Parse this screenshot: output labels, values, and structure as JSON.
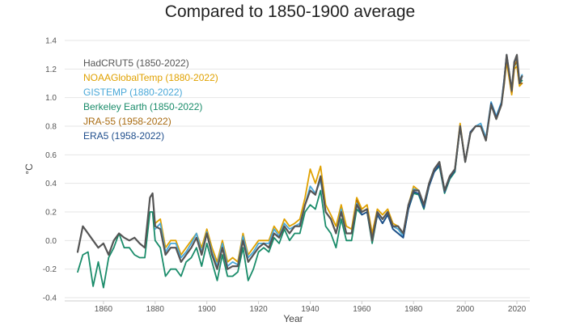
{
  "chart_data": {
    "type": "line",
    "title": "Compared to 1850-1900 average",
    "xlabel": "Year",
    "ylabel": "°C",
    "xlim": [
      1845,
      2025
    ],
    "ylim": [
      -0.4,
      1.4
    ],
    "xticks": [
      1860,
      1880,
      1900,
      1920,
      1940,
      1960,
      1980,
      2000,
      2020
    ],
    "yticks": [
      -0.4,
      -0.2,
      0.0,
      0.2,
      0.4,
      0.6,
      0.8,
      1.0,
      1.2,
      1.4
    ],
    "ytick_labels": [
      "-0.4",
      "-0.2",
      "0.0",
      "0.2",
      "0.4",
      "0.6",
      "0.8",
      "1.0",
      "1.2",
      "1.4"
    ],
    "grid": "horizontal",
    "legend_position": "top-left",
    "series": [
      {
        "name": "HadCRUT5 (1850-2022)",
        "color": "#555555",
        "x": [
          1850,
          1852,
          1854,
          1856,
          1858,
          1860,
          1862,
          1864,
          1866,
          1868,
          1870,
          1872,
          1874,
          1876,
          1878,
          1879,
          1880,
          1882,
          1884,
          1886,
          1888,
          1890,
          1892,
          1894,
          1896,
          1898,
          1900,
          1902,
          1904,
          1906,
          1908,
          1910,
          1912,
          1914,
          1916,
          1918,
          1920,
          1922,
          1924,
          1926,
          1928,
          1930,
          1932,
          1934,
          1936,
          1938,
          1940,
          1942,
          1944,
          1946,
          1948,
          1950,
          1952,
          1954,
          1956,
          1958,
          1960,
          1962,
          1964,
          1966,
          1968,
          1970,
          1972,
          1974,
          1976,
          1978,
          1980,
          1982,
          1984,
          1986,
          1988,
          1990,
          1992,
          1994,
          1996,
          1998,
          2000,
          2002,
          2004,
          2006,
          2008,
          2010,
          2012,
          2014,
          2015,
          2016,
          2018,
          2019,
          2020,
          2021,
          2022
        ],
        "values": [
          -0.08,
          0.1,
          0.05,
          0.0,
          -0.05,
          -0.02,
          -0.1,
          0.0,
          0.05,
          0.02,
          0.0,
          0.02,
          -0.02,
          -0.05,
          0.3,
          0.33,
          0.1,
          0.08,
          -0.1,
          -0.05,
          -0.05,
          -0.15,
          -0.1,
          -0.05,
          0.02,
          -0.1,
          0.05,
          -0.1,
          -0.2,
          -0.05,
          -0.2,
          -0.18,
          -0.18,
          0.0,
          -0.15,
          -0.1,
          -0.05,
          -0.02,
          -0.05,
          0.05,
          0.02,
          0.1,
          0.05,
          0.1,
          0.1,
          0.25,
          0.35,
          0.32,
          0.45,
          0.2,
          0.15,
          0.05,
          0.2,
          0.05,
          0.05,
          0.25,
          0.2,
          0.22,
          0.0,
          0.2,
          0.15,
          0.2,
          0.1,
          0.1,
          0.05,
          0.25,
          0.35,
          0.35,
          0.25,
          0.4,
          0.5,
          0.55,
          0.35,
          0.45,
          0.5,
          0.8,
          0.55,
          0.75,
          0.8,
          0.8,
          0.7,
          0.95,
          0.85,
          0.95,
          1.1,
          1.3,
          1.05,
          1.25,
          1.3,
          1.1,
          1.15
        ]
      },
      {
        "name": "NOAAGlobalTemp (1880-2022)",
        "color": "#e0a100",
        "x": [
          1880,
          1882,
          1884,
          1886,
          1888,
          1890,
          1892,
          1894,
          1896,
          1898,
          1900,
          1902,
          1904,
          1906,
          1908,
          1910,
          1912,
          1914,
          1916,
          1918,
          1920,
          1922,
          1924,
          1926,
          1928,
          1930,
          1932,
          1934,
          1936,
          1938,
          1940,
          1942,
          1944,
          1946,
          1948,
          1950,
          1952,
          1954,
          1956,
          1958,
          1960,
          1962,
          1964,
          1966,
          1968,
          1970,
          1972,
          1974,
          1976,
          1978,
          1980,
          1982,
          1984,
          1986,
          1988,
          1990,
          1992,
          1994,
          1996,
          1998,
          2000,
          2002,
          2004,
          2006,
          2008,
          2010,
          2012,
          2014,
          2015,
          2016,
          2018,
          2019,
          2020,
          2021,
          2022
        ],
        "values": [
          0.12,
          0.15,
          -0.05,
          0.0,
          0.0,
          -0.1,
          -0.05,
          0.0,
          0.05,
          -0.05,
          0.08,
          -0.05,
          -0.15,
          0.0,
          -0.15,
          -0.12,
          -0.15,
          0.05,
          -0.1,
          -0.05,
          0.0,
          0.0,
          0.0,
          0.1,
          0.05,
          0.15,
          0.1,
          0.12,
          0.15,
          0.3,
          0.5,
          0.4,
          0.52,
          0.25,
          0.18,
          0.1,
          0.25,
          0.1,
          0.08,
          0.3,
          0.22,
          0.25,
          0.05,
          0.22,
          0.18,
          0.22,
          0.12,
          0.1,
          0.05,
          0.25,
          0.38,
          0.35,
          0.25,
          0.4,
          0.5,
          0.55,
          0.35,
          0.45,
          0.5,
          0.82,
          0.55,
          0.75,
          0.8,
          0.8,
          0.7,
          0.95,
          0.85,
          0.95,
          1.08,
          1.25,
          1.02,
          1.2,
          1.22,
          1.08,
          1.1
        ]
      },
      {
        "name": "GISTEMP (1880-2022)",
        "color": "#4aa8d8",
        "x": [
          1880,
          1882,
          1884,
          1886,
          1888,
          1890,
          1892,
          1894,
          1896,
          1898,
          1900,
          1902,
          1904,
          1906,
          1908,
          1910,
          1912,
          1914,
          1916,
          1918,
          1920,
          1922,
          1924,
          1926,
          1928,
          1930,
          1932,
          1934,
          1936,
          1938,
          1940,
          1942,
          1944,
          1946,
          1948,
          1950,
          1952,
          1954,
          1956,
          1958,
          1960,
          1962,
          1964,
          1966,
          1968,
          1970,
          1972,
          1974,
          1976,
          1978,
          1980,
          1982,
          1984,
          1986,
          1988,
          1990,
          1992,
          1994,
          1996,
          1998,
          2000,
          2002,
          2004,
          2006,
          2008,
          2010,
          2012,
          2014,
          2015,
          2016,
          2018,
          2019,
          2020,
          2021,
          2022
        ],
        "values": [
          0.08,
          0.12,
          -0.08,
          -0.02,
          -0.02,
          -0.12,
          -0.08,
          -0.02,
          0.05,
          -0.08,
          0.06,
          -0.08,
          -0.18,
          -0.02,
          -0.18,
          -0.15,
          -0.17,
          0.03,
          -0.12,
          -0.08,
          -0.02,
          -0.02,
          -0.02,
          0.08,
          0.03,
          0.12,
          0.08,
          0.1,
          0.12,
          0.25,
          0.38,
          0.33,
          0.42,
          0.2,
          0.15,
          0.05,
          0.22,
          0.05,
          0.05,
          0.26,
          0.2,
          0.22,
          0.0,
          0.2,
          0.15,
          0.2,
          0.1,
          0.08,
          0.03,
          0.25,
          0.36,
          0.35,
          0.25,
          0.4,
          0.5,
          0.55,
          0.35,
          0.45,
          0.5,
          0.8,
          0.55,
          0.76,
          0.8,
          0.82,
          0.72,
          0.97,
          0.87,
          0.97,
          1.12,
          1.3,
          1.05,
          1.25,
          1.28,
          1.12,
          1.16
        ]
      },
      {
        "name": "Berkeley Earth (1850-2022)",
        "color": "#1a8c6a",
        "x": [
          1850,
          1852,
          1854,
          1856,
          1858,
          1860,
          1862,
          1864,
          1866,
          1868,
          1870,
          1872,
          1874,
          1876,
          1878,
          1879,
          1880,
          1882,
          1884,
          1886,
          1888,
          1890,
          1892,
          1894,
          1896,
          1898,
          1900,
          1902,
          1904,
          1906,
          1908,
          1910,
          1912,
          1914,
          1916,
          1918,
          1920,
          1922,
          1924,
          1926,
          1928,
          1930,
          1932,
          1934,
          1936,
          1938,
          1940,
          1942,
          1944,
          1946,
          1948,
          1950,
          1952,
          1954,
          1956,
          1958,
          1960,
          1962,
          1964,
          1966,
          1968,
          1970,
          1972,
          1974,
          1976,
          1978,
          1980,
          1982,
          1984,
          1986,
          1988,
          1990,
          1992,
          1994,
          1996,
          1998,
          2000,
          2002,
          2004,
          2006,
          2008,
          2010,
          2012,
          2014,
          2015,
          2016,
          2018,
          2019,
          2020,
          2021,
          2022
        ],
        "values": [
          -0.22,
          -0.1,
          -0.08,
          -0.32,
          -0.15,
          -0.33,
          -0.12,
          -0.05,
          0.05,
          -0.05,
          -0.05,
          -0.1,
          -0.12,
          -0.12,
          0.2,
          0.2,
          0.0,
          -0.05,
          -0.25,
          -0.2,
          -0.2,
          -0.25,
          -0.15,
          -0.12,
          -0.05,
          -0.18,
          -0.02,
          -0.15,
          -0.28,
          -0.1,
          -0.25,
          -0.25,
          -0.22,
          -0.05,
          -0.28,
          -0.2,
          -0.08,
          -0.05,
          -0.08,
          0.02,
          -0.02,
          0.08,
          0.0,
          0.05,
          0.05,
          0.2,
          0.25,
          0.22,
          0.35,
          0.1,
          0.05,
          -0.05,
          0.15,
          0.0,
          0.0,
          0.22,
          0.18,
          0.2,
          -0.02,
          0.18,
          0.12,
          0.18,
          0.08,
          0.05,
          0.02,
          0.22,
          0.33,
          0.32,
          0.22,
          0.38,
          0.48,
          0.52,
          0.33,
          0.43,
          0.48,
          0.8,
          0.55,
          0.75,
          0.8,
          0.8,
          0.7,
          0.96,
          0.86,
          0.96,
          1.1,
          1.28,
          1.04,
          1.22,
          1.25,
          1.1,
          1.12
        ]
      },
      {
        "name": "JRA-55 (1958-2022)",
        "color": "#a86a10",
        "x": [
          1958,
          1960,
          1962,
          1964,
          1966,
          1968,
          1970,
          1972,
          1974,
          1976,
          1978,
          1980,
          1982,
          1984,
          1986,
          1988,
          1990,
          1992,
          1994,
          1996,
          1998,
          2000,
          2002,
          2004,
          2006,
          2008,
          2010,
          2012,
          2014,
          2015,
          2016,
          2018,
          2019,
          2020,
          2021,
          2022
        ],
        "values": [
          0.28,
          0.2,
          0.22,
          0.02,
          0.2,
          0.15,
          0.2,
          0.1,
          0.08,
          0.05,
          0.25,
          0.36,
          0.35,
          0.25,
          0.4,
          0.5,
          0.55,
          0.35,
          0.45,
          0.5,
          0.8,
          0.55,
          0.76,
          0.8,
          0.8,
          0.7,
          0.96,
          0.86,
          0.96,
          1.1,
          1.28,
          1.04,
          1.22,
          1.26,
          1.1,
          1.1
        ]
      },
      {
        "name": "ERA5 (1958-2022)",
        "color": "#1f4e8c",
        "x": [
          1958,
          1960,
          1962,
          1964,
          1966,
          1968,
          1970,
          1972,
          1974,
          1976,
          1978,
          1980,
          1982,
          1984,
          1986,
          1988,
          1990,
          1992,
          1994,
          1996,
          1998,
          2000,
          2002,
          2004,
          2006,
          2008,
          2010,
          2012,
          2014,
          2015,
          2016,
          2018,
          2019,
          2020,
          2021,
          2022
        ],
        "values": [
          0.25,
          0.18,
          0.2,
          0.0,
          0.18,
          0.12,
          0.18,
          0.08,
          0.05,
          0.02,
          0.22,
          0.34,
          0.33,
          0.23,
          0.38,
          0.48,
          0.53,
          0.34,
          0.44,
          0.49,
          0.8,
          0.55,
          0.76,
          0.8,
          0.8,
          0.7,
          0.96,
          0.86,
          0.96,
          1.12,
          1.3,
          1.05,
          1.25,
          1.28,
          1.1,
          1.15
        ]
      }
    ]
  }
}
